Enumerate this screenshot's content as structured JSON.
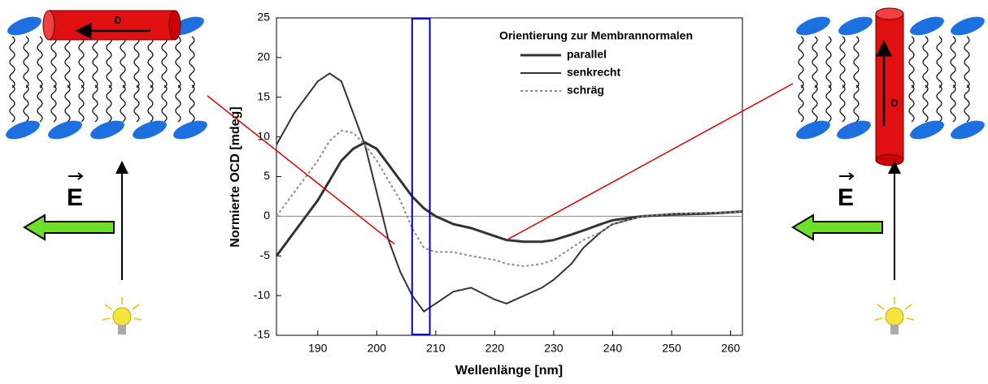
{
  "chart_data": {
    "type": "line",
    "xlabel": "Wellenlänge [nm]",
    "ylabel": "Normierte OCD [mdeg]",
    "legend_title": "Orientierung zur Membrannormalen",
    "x": [
      183,
      186,
      190,
      192,
      194,
      196,
      198,
      200,
      202,
      204,
      206,
      208,
      210,
      213,
      216,
      220,
      222,
      225,
      228,
      230,
      233,
      235,
      238,
      240,
      245,
      250,
      255,
      260,
      262
    ],
    "series": [
      {
        "name": "parallel",
        "color": "#333333",
        "width": 3,
        "dash": false,
        "values": [
          -5,
          -2,
          2,
          4.5,
          7,
          8.5,
          9.3,
          8.5,
          6.5,
          4.5,
          2.5,
          1,
          0,
          -1,
          -1.5,
          -2.5,
          -3,
          -3.2,
          -3.2,
          -3,
          -2.3,
          -1.8,
          -1,
          -0.5,
          0,
          0.2,
          0.3,
          0.5,
          0.6
        ]
      },
      {
        "name": "senkrecht",
        "color": "#333333",
        "width": 2,
        "dash": false,
        "values": [
          9,
          13,
          17,
          18,
          17,
          13,
          9,
          3,
          -3,
          -7,
          -10,
          -12,
          -11,
          -9.5,
          -9,
          -10.5,
          -11,
          -10,
          -9,
          -8,
          -6,
          -4,
          -2,
          -1,
          0,
          0.3,
          0.4,
          0.5,
          0.6
        ]
      },
      {
        "name": "schräg",
        "color": "#888888",
        "width": 2,
        "dash": true,
        "values": [
          0,
          3,
          7,
          9.5,
          10.8,
          10.5,
          9,
          7,
          4.5,
          2,
          -1.5,
          -4,
          -4.5,
          -4.5,
          -5,
          -5.5,
          -6,
          -6.3,
          -6,
          -5.5,
          -4,
          -3,
          -2,
          -1,
          0,
          0.3,
          0.4,
          0.5,
          0.6
        ]
      }
    ],
    "xlim": [
      183,
      262
    ],
    "xticks": [
      190,
      200,
      210,
      220,
      230,
      240,
      250,
      260
    ],
    "ylim": [
      -15,
      25
    ],
    "yticks": [
      -15,
      -10,
      -5,
      0,
      5,
      10,
      15,
      20,
      25
    ],
    "zero_line": true,
    "highlight_x": [
      206,
      209
    ],
    "highlight_color": "#0000dd",
    "callouts": [
      {
        "x": 203,
        "y": -3.5
      },
      {
        "x": 222,
        "y": -3
      }
    ],
    "callout_color": "#dd0000"
  },
  "diagrams": {
    "left": {
      "helix_label": "D",
      "field_label": "E"
    },
    "right": {
      "helix_label": "D",
      "field_label": "E"
    }
  }
}
